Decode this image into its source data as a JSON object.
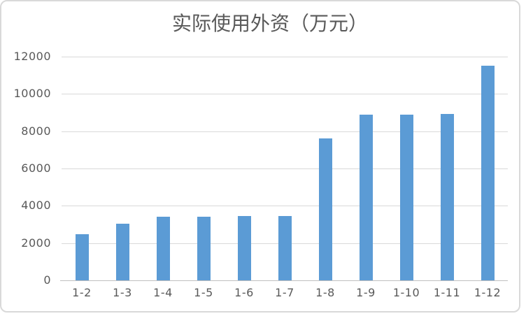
{
  "chart_data": {
    "type": "bar",
    "title": "实际使用外资（万元）",
    "categories": [
      "1-2",
      "1-3",
      "1-4",
      "1-5",
      "1-6",
      "1-7",
      "1-8",
      "1-9",
      "1-10",
      "1-11",
      "1-12"
    ],
    "values": [
      2490,
      3040,
      3410,
      3410,
      3450,
      3450,
      7610,
      8900,
      8900,
      8940,
      11500
    ],
    "xlabel": "",
    "ylabel": "",
    "ylim": [
      0,
      12000
    ],
    "ytick_interval": 2000,
    "yticks": [
      0,
      2000,
      4000,
      6000,
      8000,
      10000,
      12000
    ],
    "grid": "horizontal",
    "legend": "none",
    "colors": {
      "bar": "#5B9BD5",
      "gridline": "#D9D9D9",
      "axis_line": "#BFBFBF",
      "text": "#595959",
      "frame_border": "#D9D9D9",
      "background": "#FFFFFF"
    }
  }
}
